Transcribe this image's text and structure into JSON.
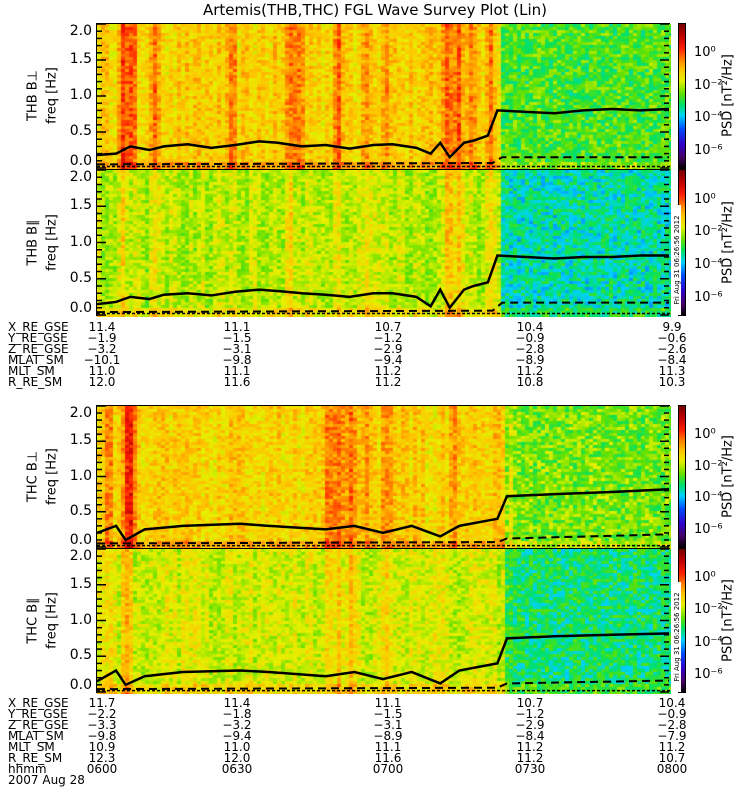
{
  "title": "Artemis(THB,THC) FGL Wave Survey Plot (Lin)",
  "timestamp": "Fri Aug 31 06:26:56 2012",
  "colorbar": {
    "label": "PSD [nT²/Hz]",
    "ticks": [
      "10⁰",
      "10⁻²",
      "10⁻⁴",
      "10⁻⁶"
    ]
  },
  "y_ticks": [
    "2.0",
    "1.5",
    "1.0",
    "0.5",
    "0.0"
  ],
  "ephem_top": [
    {
      "label": "X_RE_GSE",
      "values": [
        "11.4",
        "11.1",
        "10.7",
        "10.4",
        "9.9"
      ]
    },
    {
      "label": "Y_RE_GSE",
      "values": [
        "−1.9",
        "−1.5",
        "−1.2",
        "−0.9",
        "−0.6"
      ]
    },
    {
      "label": "Z_RE_GSE",
      "values": [
        "−3.2",
        "−3.1",
        "−2.9",
        "−2.8",
        "−2.6"
      ]
    },
    {
      "label": "MLAT_SM",
      "values": [
        "−10.1",
        "−9.8",
        "−9.4",
        "−8.9",
        "−8.4"
      ]
    },
    {
      "label": "MLT_SM",
      "values": [
        "11.0",
        "11.1",
        "11.2",
        "11.2",
        "11.3"
      ]
    },
    {
      "label": "R_RE_SM",
      "values": [
        "12.0",
        "11.6",
        "11.2",
        "10.8",
        "10.3"
      ]
    }
  ],
  "ephem_bottom": [
    {
      "label": "X_RE_GSE",
      "values": [
        "11.7",
        "11.4",
        "11.1",
        "10.7",
        "10.4"
      ]
    },
    {
      "label": "Y_RE_GSE",
      "values": [
        "−2.2",
        "−1.8",
        "−1.5",
        "−1.2",
        "−0.9"
      ]
    },
    {
      "label": "Z_RE_GSE",
      "values": [
        "−3.3",
        "−3.2",
        "−3.1",
        "−2.9",
        "−2.8"
      ]
    },
    {
      "label": "MLAT_SM",
      "values": [
        "−9.8",
        "−9.4",
        "−8.9",
        "−8.4",
        "−7.9"
      ]
    },
    {
      "label": "MLT_SM",
      "values": [
        "10.9",
        "11.0",
        "11.1",
        "11.2",
        "11.2"
      ]
    },
    {
      "label": "R_RE_SM",
      "values": [
        "12.3",
        "12.0",
        "11.6",
        "11.2",
        "10.7"
      ]
    },
    {
      "label": "hhmm",
      "values": [
        "0600",
        "0630",
        "0700",
        "0730",
        "0800"
      ]
    }
  ],
  "date": "2007 Aug 28",
  "chart_data": {
    "type": "heatmap",
    "title": "Artemis(THB,THC) FGL Wave Survey Plot (Lin)",
    "x_unit": "minutes after 0600 UT",
    "xlim": [
      0,
      120
    ],
    "ylabel": "freq [Hz]",
    "ylim": [
      0,
      2.0
    ],
    "zlabel": "PSD [nT^2/Hz]",
    "zlim_log10": [
      -7,
      2
    ],
    "panels": [
      {
        "name": "THB B⊥",
        "before_log_psd": -1.0,
        "after_log_psd": -2.5,
        "transition_min": 84,
        "stripes_min": [
          [
            5,
            1.3
          ],
          [
            7,
            1.1
          ],
          [
            12,
            0.9
          ],
          [
            28,
            0.7
          ],
          [
            40,
            0.9
          ],
          [
            42,
            1.0
          ],
          [
            50,
            0.9
          ],
          [
            56,
            0.8
          ],
          [
            60,
            0.7
          ],
          [
            73,
            1.4
          ],
          [
            75,
            1.2
          ],
          [
            78,
            1.0
          ],
          [
            82,
            0.8
          ]
        ],
        "solid": [
          [
            0,
            0.18
          ],
          [
            4,
            0.2
          ],
          [
            7,
            0.3
          ],
          [
            11,
            0.25
          ],
          [
            14,
            0.3
          ],
          [
            19,
            0.33
          ],
          [
            24,
            0.28
          ],
          [
            29,
            0.32
          ],
          [
            34,
            0.37
          ],
          [
            38,
            0.35
          ],
          [
            43,
            0.3
          ],
          [
            48,
            0.32
          ],
          [
            53,
            0.27
          ],
          [
            58,
            0.32
          ],
          [
            62,
            0.33
          ],
          [
            67,
            0.28
          ],
          [
            70,
            0.2
          ],
          [
            72,
            0.35
          ],
          [
            74,
            0.15
          ],
          [
            77,
            0.35
          ],
          [
            79,
            0.38
          ],
          [
            82,
            0.45
          ],
          [
            84,
            0.8
          ],
          [
            90,
            0.78
          ],
          [
            96,
            0.76
          ],
          [
            102,
            0.8
          ],
          [
            108,
            0.82
          ],
          [
            114,
            0.8
          ],
          [
            120,
            0.82
          ]
        ],
        "dashed": [
          [
            0,
            0.05
          ],
          [
            83,
            0.07
          ],
          [
            85,
            0.15
          ],
          [
            120,
            0.15
          ]
        ]
      },
      {
        "name": "THB B∥",
        "before_log_psd": -1.8,
        "after_log_psd": -3.3,
        "transition_min": 84,
        "stripes_min": [
          [
            5,
            0.8
          ],
          [
            12,
            0.6
          ],
          [
            28,
            0.5
          ],
          [
            40,
            0.7
          ],
          [
            50,
            0.6
          ],
          [
            56,
            0.6
          ],
          [
            73,
            1.2
          ],
          [
            75,
            1.0
          ],
          [
            82,
            0.7
          ]
        ],
        "solid": [
          [
            0,
            0.15
          ],
          [
            4,
            0.18
          ],
          [
            7,
            0.25
          ],
          [
            11,
            0.22
          ],
          [
            14,
            0.28
          ],
          [
            19,
            0.3
          ],
          [
            24,
            0.27
          ],
          [
            29,
            0.32
          ],
          [
            34,
            0.35
          ],
          [
            38,
            0.33
          ],
          [
            43,
            0.3
          ],
          [
            48,
            0.28
          ],
          [
            53,
            0.25
          ],
          [
            58,
            0.3
          ],
          [
            62,
            0.3
          ],
          [
            67,
            0.25
          ],
          [
            70,
            0.12
          ],
          [
            72,
            0.35
          ],
          [
            74,
            0.1
          ],
          [
            77,
            0.35
          ],
          [
            79,
            0.4
          ],
          [
            82,
            0.45
          ],
          [
            84,
            0.82
          ],
          [
            90,
            0.8
          ],
          [
            96,
            0.78
          ],
          [
            102,
            0.8
          ],
          [
            108,
            0.8
          ],
          [
            114,
            0.82
          ],
          [
            120,
            0.82
          ]
        ],
        "dashed": [
          [
            0,
            0.04
          ],
          [
            83,
            0.06
          ],
          [
            85,
            0.17
          ],
          [
            120,
            0.17
          ]
        ]
      },
      {
        "name": "THC B⊥",
        "before_log_psd": -1.0,
        "after_log_psd": -2.2,
        "transition_min": 85,
        "stripes_min": [
          [
            2,
            0.8
          ],
          [
            6,
            1.3
          ],
          [
            7,
            1.2
          ],
          [
            48,
            0.9
          ],
          [
            50,
            1.0
          ],
          [
            53,
            0.9
          ],
          [
            56,
            0.8
          ],
          [
            60,
            0.9
          ],
          [
            74,
            0.7
          ],
          [
            86,
            1.2
          ]
        ],
        "solid": [
          [
            0,
            0.2
          ],
          [
            4,
            0.3
          ],
          [
            6,
            0.1
          ],
          [
            10,
            0.25
          ],
          [
            18,
            0.3
          ],
          [
            30,
            0.33
          ],
          [
            36,
            0.3
          ],
          [
            48,
            0.25
          ],
          [
            54,
            0.3
          ],
          [
            60,
            0.2
          ],
          [
            66,
            0.3
          ],
          [
            72,
            0.15
          ],
          [
            76,
            0.3
          ],
          [
            84,
            0.4
          ],
          [
            86,
            0.72
          ],
          [
            96,
            0.75
          ],
          [
            108,
            0.78
          ],
          [
            120,
            0.82
          ]
        ],
        "dashed": [
          [
            0,
            0.05
          ],
          [
            84,
            0.07
          ],
          [
            86,
            0.12
          ],
          [
            120,
            0.18
          ]
        ]
      },
      {
        "name": "THC B∥",
        "before_log_psd": -1.6,
        "after_log_psd": -3.0,
        "transition_min": 85,
        "stripes_min": [
          [
            2,
            0.6
          ],
          [
            6,
            1.1
          ],
          [
            48,
            0.8
          ],
          [
            50,
            0.8
          ],
          [
            53,
            0.7
          ],
          [
            60,
            0.7
          ],
          [
            86,
            0.9
          ]
        ],
        "solid": [
          [
            0,
            0.15
          ],
          [
            4,
            0.3
          ],
          [
            6,
            0.1
          ],
          [
            10,
            0.22
          ],
          [
            18,
            0.28
          ],
          [
            30,
            0.3
          ],
          [
            36,
            0.28
          ],
          [
            48,
            0.22
          ],
          [
            54,
            0.28
          ],
          [
            60,
            0.18
          ],
          [
            66,
            0.28
          ],
          [
            72,
            0.12
          ],
          [
            76,
            0.3
          ],
          [
            84,
            0.4
          ],
          [
            86,
            0.75
          ],
          [
            96,
            0.78
          ],
          [
            108,
            0.8
          ],
          [
            120,
            0.82
          ]
        ],
        "dashed": [
          [
            0,
            0.04
          ],
          [
            84,
            0.06
          ],
          [
            86,
            0.12
          ],
          [
            120,
            0.16
          ]
        ]
      }
    ]
  }
}
